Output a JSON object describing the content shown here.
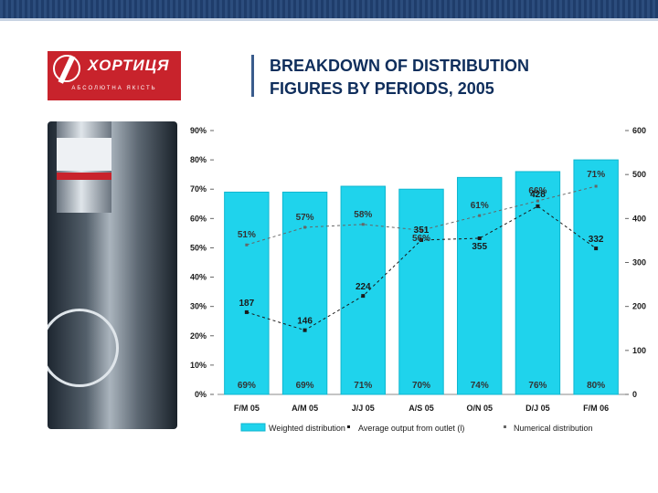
{
  "slide": {
    "title": "BREAKDOWN OF DISTRIBUTION\nFIGURES BY PERIODS, 2005",
    "logo": {
      "brand": "ХОРТИЦЯ",
      "tagline": "АБСОЛЮТНА ЯКІСТЬ"
    }
  },
  "colors": {
    "bar": "#1fd3ec",
    "bar_stroke": "#0fb6cf",
    "line": "#1a1a1a",
    "pct_label": "#333333",
    "num_label": "#1a1a1a",
    "title": "#0f2e5c"
  },
  "chart_data": {
    "type": "bar",
    "categories": [
      "F/M 05",
      "A/M 05",
      "J/J 05",
      "A/S 05",
      "O/N 05",
      "D/J 05",
      "F/M 06"
    ],
    "series": [
      {
        "name": "Weighted distribution",
        "type": "bar",
        "axis": "left",
        "values": [
          69,
          69,
          71,
          70,
          74,
          76,
          80
        ],
        "labels": [
          "69%",
          "69%",
          "71%",
          "70%",
          "74%",
          "76%",
          "80%"
        ]
      },
      {
        "name": "Average output from outlet (l)",
        "type": "line",
        "axis": "right",
        "values": [
          187,
          146,
          224,
          351,
          355,
          428,
          332
        ],
        "labels": [
          "187",
          "146",
          "224",
          "351",
          "355",
          "428",
          "332"
        ]
      },
      {
        "name": "Numerical distribution",
        "type": "line",
        "axis": "left",
        "values": [
          51,
          57,
          58,
          56,
          61,
          66,
          71
        ],
        "labels": [
          "51%",
          "57%",
          "58%",
          "56%",
          "61%",
          "66%",
          "71%"
        ]
      }
    ],
    "y_left": {
      "range": [
        0,
        90
      ],
      "ticks": [
        "0%",
        "10%",
        "20%",
        "30%",
        "40%",
        "50%",
        "60%",
        "70%",
        "80%",
        "90%"
      ]
    },
    "y_right": {
      "range": [
        0,
        600
      ],
      "ticks": [
        "0",
        "100",
        "200",
        "300",
        "400",
        "500",
        "600"
      ]
    },
    "legend_position": "bottom",
    "grid": false
  }
}
